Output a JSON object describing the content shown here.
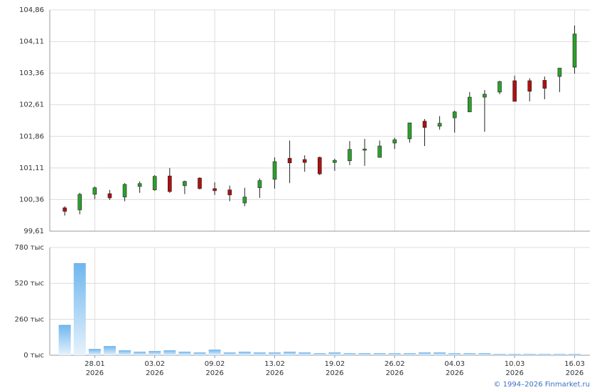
{
  "chart_data": [
    {
      "type": "candlestick",
      "open": [
        100.165,
        100.115,
        100.485,
        100.5,
        100.42,
        100.67,
        100.59,
        100.92,
        100.69,
        100.87,
        100.62,
        100.59,
        100.28,
        100.64,
        100.84,
        101.34,
        101.31,
        101.36,
        101.24,
        101.28,
        101.53,
        101.36,
        101.7,
        101.8,
        102.22,
        102.1,
        102.3,
        102.44,
        102.79,
        102.91,
        103.18,
        103.18,
        103.19,
        103.28,
        103.5
      ],
      "high": [
        100.2,
        100.52,
        100.67,
        100.59,
        100.75,
        100.79,
        100.94,
        101.11,
        100.81,
        100.89,
        100.77,
        100.69,
        100.64,
        100.86,
        101.36,
        101.76,
        101.41,
        101.38,
        101.33,
        101.75,
        101.8,
        101.76,
        101.83,
        102.18,
        102.27,
        102.34,
        102.47,
        102.91,
        102.96,
        103.18,
        103.3,
        103.24,
        103.28,
        103.48,
        104.49
      ],
      "low": [
        99.98,
        100.01,
        100.37,
        100.35,
        100.32,
        100.52,
        100.57,
        100.52,
        100.49,
        100.6,
        100.47,
        100.32,
        100.2,
        100.4,
        100.62,
        100.75,
        101.02,
        100.94,
        101.04,
        101.18,
        101.16,
        101.36,
        101.56,
        101.71,
        101.63,
        102.02,
        101.95,
        102.44,
        101.97,
        102.86,
        102.69,
        102.69,
        102.74,
        102.91,
        103.35
      ],
      "close": [
        100.08,
        100.485,
        100.64,
        100.4,
        100.72,
        100.74,
        100.91,
        100.55,
        100.79,
        100.62,
        100.57,
        100.47,
        100.42,
        100.81,
        101.26,
        101.23,
        101.24,
        100.97,
        101.29,
        101.55,
        101.56,
        101.63,
        101.78,
        102.18,
        102.07,
        102.17,
        102.44,
        102.79,
        102.86,
        103.16,
        102.69,
        102.93,
        103.0,
        103.48,
        104.29
      ],
      "up_color": "#2ca02c",
      "down_color": "#b01010",
      "ylim": [
        99.61,
        104.86
      ],
      "yticks": [
        {
          "value": 99.61,
          "label": "99,61"
        },
        {
          "value": 100.36,
          "label": "100,36"
        },
        {
          "value": 101.11,
          "label": "101,11"
        },
        {
          "value": 101.86,
          "label": "101,86"
        },
        {
          "value": 102.61,
          "label": "102,61"
        },
        {
          "value": 103.36,
          "label": "103,36"
        },
        {
          "value": 104.11,
          "label": "104,11"
        },
        {
          "value": 104.86,
          "label": "104,86"
        }
      ],
      "grid": true
    },
    {
      "type": "bar",
      "categories": [
        null,
        null,
        "28.01\n2026",
        null,
        null,
        null,
        "03.02\n2026",
        null,
        null,
        null,
        "09.02\n2026",
        null,
        null,
        null,
        "13.02\n2026",
        null,
        null,
        null,
        "19.02\n2026",
        null,
        null,
        null,
        "26.02\n2026",
        null,
        null,
        null,
        "04.03\n2026",
        null,
        null,
        null,
        "10.03\n2026",
        null,
        null,
        null,
        "16.03\n2026"
      ],
      "values": [
        220,
        667,
        46,
        67,
        36,
        26,
        31,
        36,
        26,
        21,
        41,
        21,
        26,
        21,
        21,
        26,
        21,
        15,
        21,
        15,
        15,
        15,
        15,
        15,
        21,
        21,
        15,
        15,
        15,
        10,
        10,
        10,
        10,
        10,
        10
      ],
      "color": "#6fb6ee",
      "ylim": [
        0,
        780
      ],
      "yticks": [
        {
          "value": 0,
          "label": "0 тыс"
        },
        {
          "value": 260,
          "label": "260 тыс"
        },
        {
          "value": 520,
          "label": "520 тыс"
        },
        {
          "value": 780,
          "label": "780 тыс"
        }
      ],
      "grid": true
    }
  ],
  "footer": "© 1994–2026 Finmarket.ru"
}
